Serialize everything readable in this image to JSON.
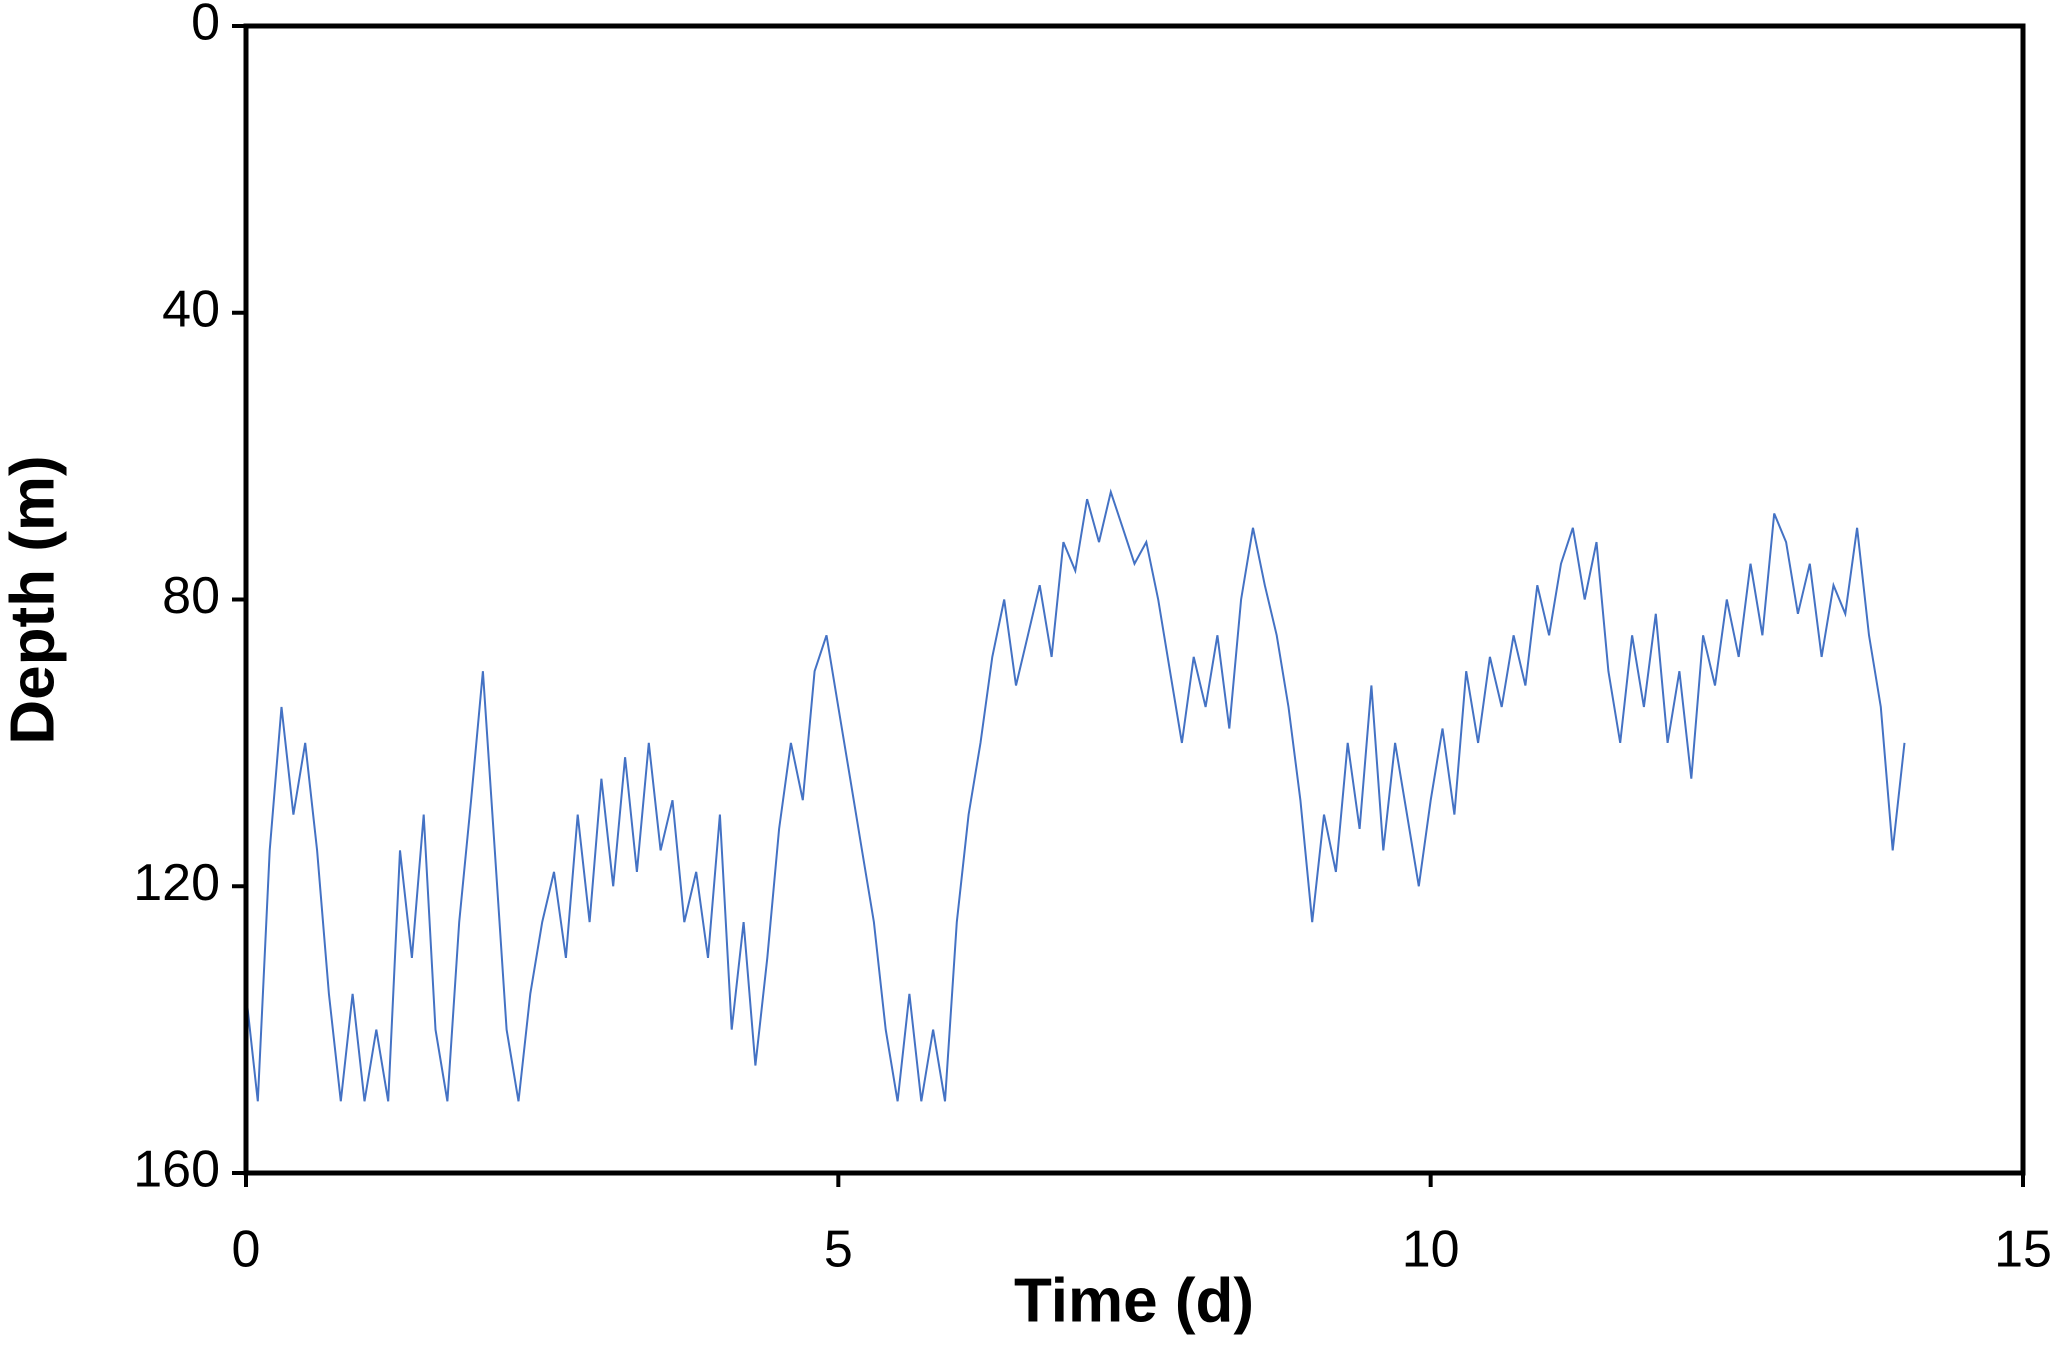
{
  "chart_data": {
    "type": "line",
    "xlabel": "Time (d)",
    "ylabel": "Depth (m)",
    "xlim": [
      0,
      15
    ],
    "xticks": [
      0,
      5,
      10,
      15
    ],
    "ylim": [
      0,
      160
    ],
    "yticks": [
      0,
      40,
      80,
      120,
      160
    ],
    "y_inverted": true,
    "grid": false,
    "x": [
      0,
      0.1,
      0.2,
      0.3,
      0.4,
      0.5,
      0.6,
      0.7,
      0.8,
      0.9,
      1,
      1.1,
      1.2,
      1.3,
      1.4,
      1.5,
      1.6,
      1.7,
      1.8,
      1.9,
      2,
      2.1,
      2.2,
      2.3,
      2.4,
      2.5,
      2.6,
      2.7,
      2.8,
      2.9,
      3,
      3.1,
      3.2,
      3.3,
      3.4,
      3.5,
      3.6,
      3.7,
      3.8,
      3.9,
      4,
      4.1,
      4.2,
      4.3,
      4.4,
      4.5,
      4.6,
      4.7,
      4.8,
      4.9,
      5,
      5.1,
      5.2,
      5.3,
      5.4,
      5.5,
      5.6,
      5.7,
      5.8,
      5.9,
      6,
      6.1,
      6.2,
      6.3,
      6.4,
      6.5,
      6.6,
      6.7,
      6.8,
      6.9,
      7,
      7.1,
      7.2,
      7.3,
      7.4,
      7.5,
      7.6,
      7.7,
      7.8,
      7.9,
      8,
      8.1,
      8.2,
      8.3,
      8.4,
      8.5,
      8.6,
      8.7,
      8.8,
      8.9,
      9,
      9.1,
      9.2,
      9.3,
      9.4,
      9.5,
      9.6,
      9.7,
      9.8,
      9.9,
      10,
      10.1,
      10.2,
      10.3,
      10.4,
      10.5,
      10.6,
      10.7,
      10.8,
      10.9,
      11,
      11.1,
      11.2,
      11.3,
      11.4,
      11.5,
      11.6,
      11.7,
      11.8,
      11.9,
      12,
      12.1,
      12.2,
      12.3,
      12.4,
      12.5,
      12.6,
      12.7,
      12.8,
      12.9,
      13,
      13.1,
      13.2,
      13.3,
      13.4,
      13.5,
      13.6,
      13.7,
      13.8,
      13.9,
      14
    ],
    "series": [
      {
        "color": "#4472c4",
        "values": [
          135,
          150,
          115,
          95,
          110,
          100,
          115,
          135,
          150,
          135,
          150,
          140,
          150,
          115,
          130,
          110,
          140,
          150,
          125,
          108,
          90,
          115,
          140,
          150,
          135,
          125,
          118,
          130,
          110,
          125,
          105,
          120,
          102,
          118,
          100,
          115,
          108,
          125,
          118,
          130,
          110,
          140,
          125,
          145,
          130,
          112,
          100,
          108,
          90,
          85,
          95,
          105,
          115,
          125,
          140,
          150,
          135,
          150,
          140,
          150,
          125,
          110,
          100,
          88,
          80,
          92,
          85,
          78,
          88,
          72,
          76,
          66,
          72,
          65,
          70,
          75,
          72,
          80,
          90,
          100,
          88,
          95,
          85,
          98,
          80,
          70,
          78,
          85,
          95,
          108,
          125,
          110,
          118,
          100,
          112,
          92,
          115,
          100,
          110,
          120,
          108,
          98,
          110,
          90,
          100,
          88,
          95,
          85,
          92,
          78,
          85,
          75,
          70,
          80,
          72,
          90,
          100,
          85,
          95,
          82,
          100,
          90,
          105,
          85,
          92,
          80,
          88,
          75,
          85,
          68,
          72,
          82,
          75,
          88,
          78,
          82,
          70,
          85,
          95,
          115,
          100
        ]
      }
    ]
  }
}
